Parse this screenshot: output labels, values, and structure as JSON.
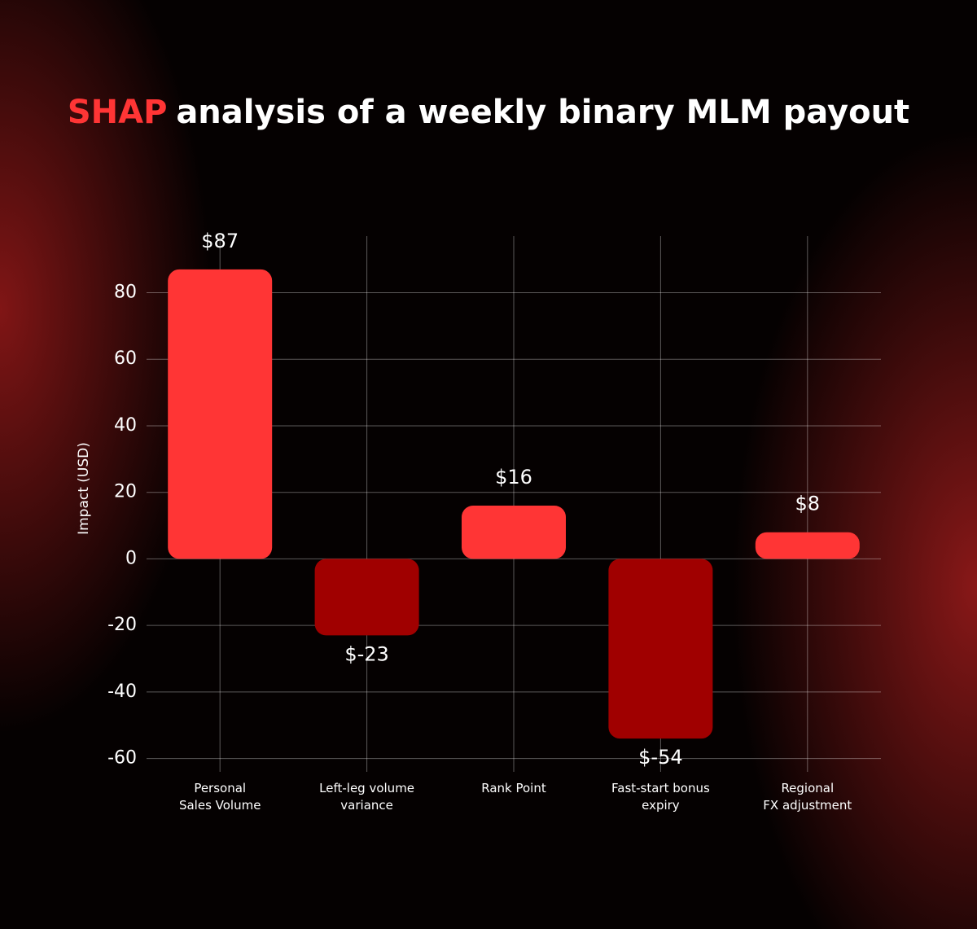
{
  "chart_data": {
    "type": "bar",
    "title_highlight": "SHAP",
    "title": "analysis of a weekly binary MLM payout",
    "y_label": "Impact (USD)",
    "categories": [
      "Personal\nSales Volume",
      "Left-leg volume\nvariance",
      "Rank Point",
      "Fast-start bonus\nexpiry",
      "Regional\nFX adjustment"
    ],
    "values": [
      87,
      -23,
      16,
      -54,
      8
    ],
    "value_labels": [
      "$87",
      "$-23",
      "$16",
      "$-54",
      "$8"
    ],
    "positive_color": "#ff3535",
    "negative_color": "#a00000",
    "highlight_color": "#ff3535",
    "ylim": [
      -64,
      97
    ],
    "yticks": [
      -60,
      -40,
      -20,
      0,
      20,
      40,
      60,
      80
    ],
    "grid": true
  }
}
